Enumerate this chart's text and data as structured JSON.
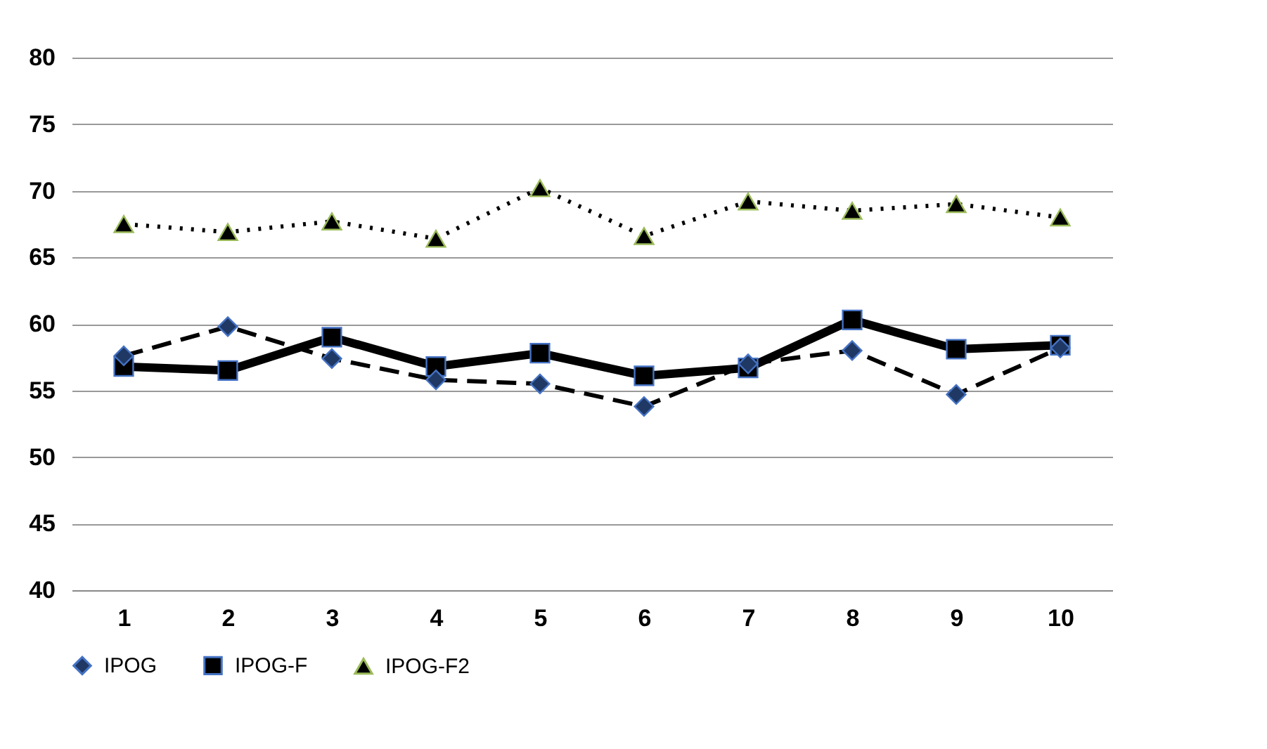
{
  "chart_data": {
    "type": "line",
    "categories": [
      "1",
      "2",
      "3",
      "4",
      "5",
      "6",
      "7",
      "8",
      "9",
      "10"
    ],
    "series": [
      {
        "name": "IPOG",
        "color": "#000000",
        "marker": "diamond",
        "line_style": "dashed",
        "values": [
          57.6,
          59.8,
          57.4,
          55.8,
          55.5,
          53.8,
          57.0,
          58.0,
          54.7,
          58.2
        ]
      },
      {
        "name": "IPOG-F",
        "color": "#000000",
        "marker": "square",
        "line_style": "solid",
        "values": [
          56.8,
          56.5,
          59.0,
          56.8,
          57.8,
          56.1,
          56.7,
          60.3,
          58.1,
          58.4
        ]
      },
      {
        "name": "IPOG-F2",
        "color": "#000000",
        "marker": "triangle",
        "line_style": "dotted",
        "values": [
          67.5,
          66.9,
          67.7,
          66.4,
          70.2,
          66.6,
          69.2,
          68.5,
          69.0,
          68.0
        ]
      }
    ],
    "ylim": [
      40,
      80
    ],
    "yticks": [
      40,
      45,
      50,
      55,
      60,
      65,
      70,
      75,
      80
    ],
    "grid": "y",
    "legend": "bottom"
  }
}
